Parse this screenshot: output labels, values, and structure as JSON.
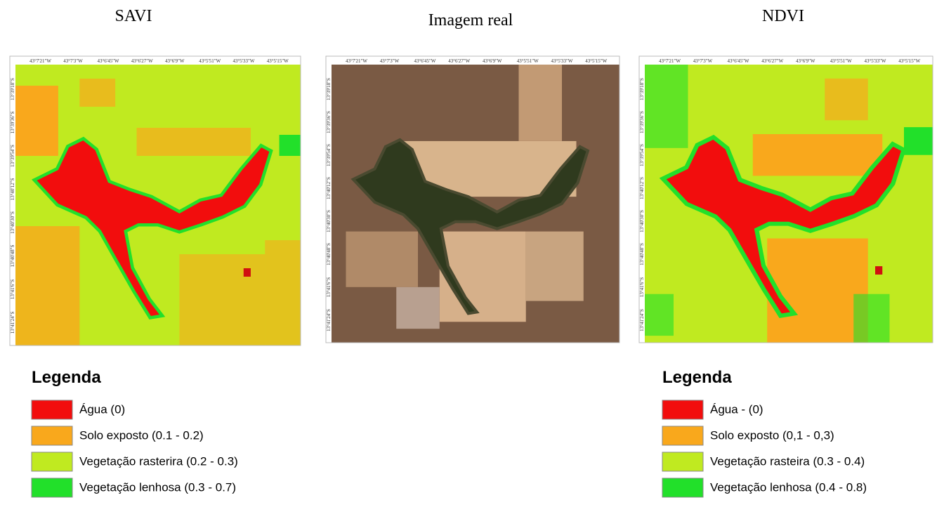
{
  "panels": [
    {
      "title": "SAVI"
    },
    {
      "title": "Imagem real"
    },
    {
      "title": "NDVI"
    }
  ],
  "coordinates": {
    "longitude": [
      "43°7'21\"W",
      "43°7'3\"W",
      "43°6'45\"W",
      "43°6'27\"W",
      "43°6'9\"W",
      "43°5'51\"W",
      "43°5'33\"W",
      "43°5'15\"W"
    ],
    "latitude": [
      "13°39'18\"S",
      "13°39'36\"S",
      "13°39'54\"S",
      "13°40'12\"S",
      "13°40'30\"S",
      "13°40'48\"S",
      "13°41'6\"S",
      "13°41'24\"S"
    ]
  },
  "legends": [
    {
      "title": "Legenda",
      "items": [
        "Água (0)",
        "Solo exposto (0.1 - 0.2)",
        "Vegetação rasterira (0.2 - 0.3)",
        "Vegetação lenhosa (0.3 - 0.7)"
      ]
    },
    {
      "title": "Legenda",
      "items": [
        "Água - (0)",
        "Solo exposto (0,1 - 0,3)",
        "Vegetação rasteira (0.3 - 0.4)",
        "Vegetação lenhosa (0.4 - 0.8)"
      ]
    }
  ]
}
